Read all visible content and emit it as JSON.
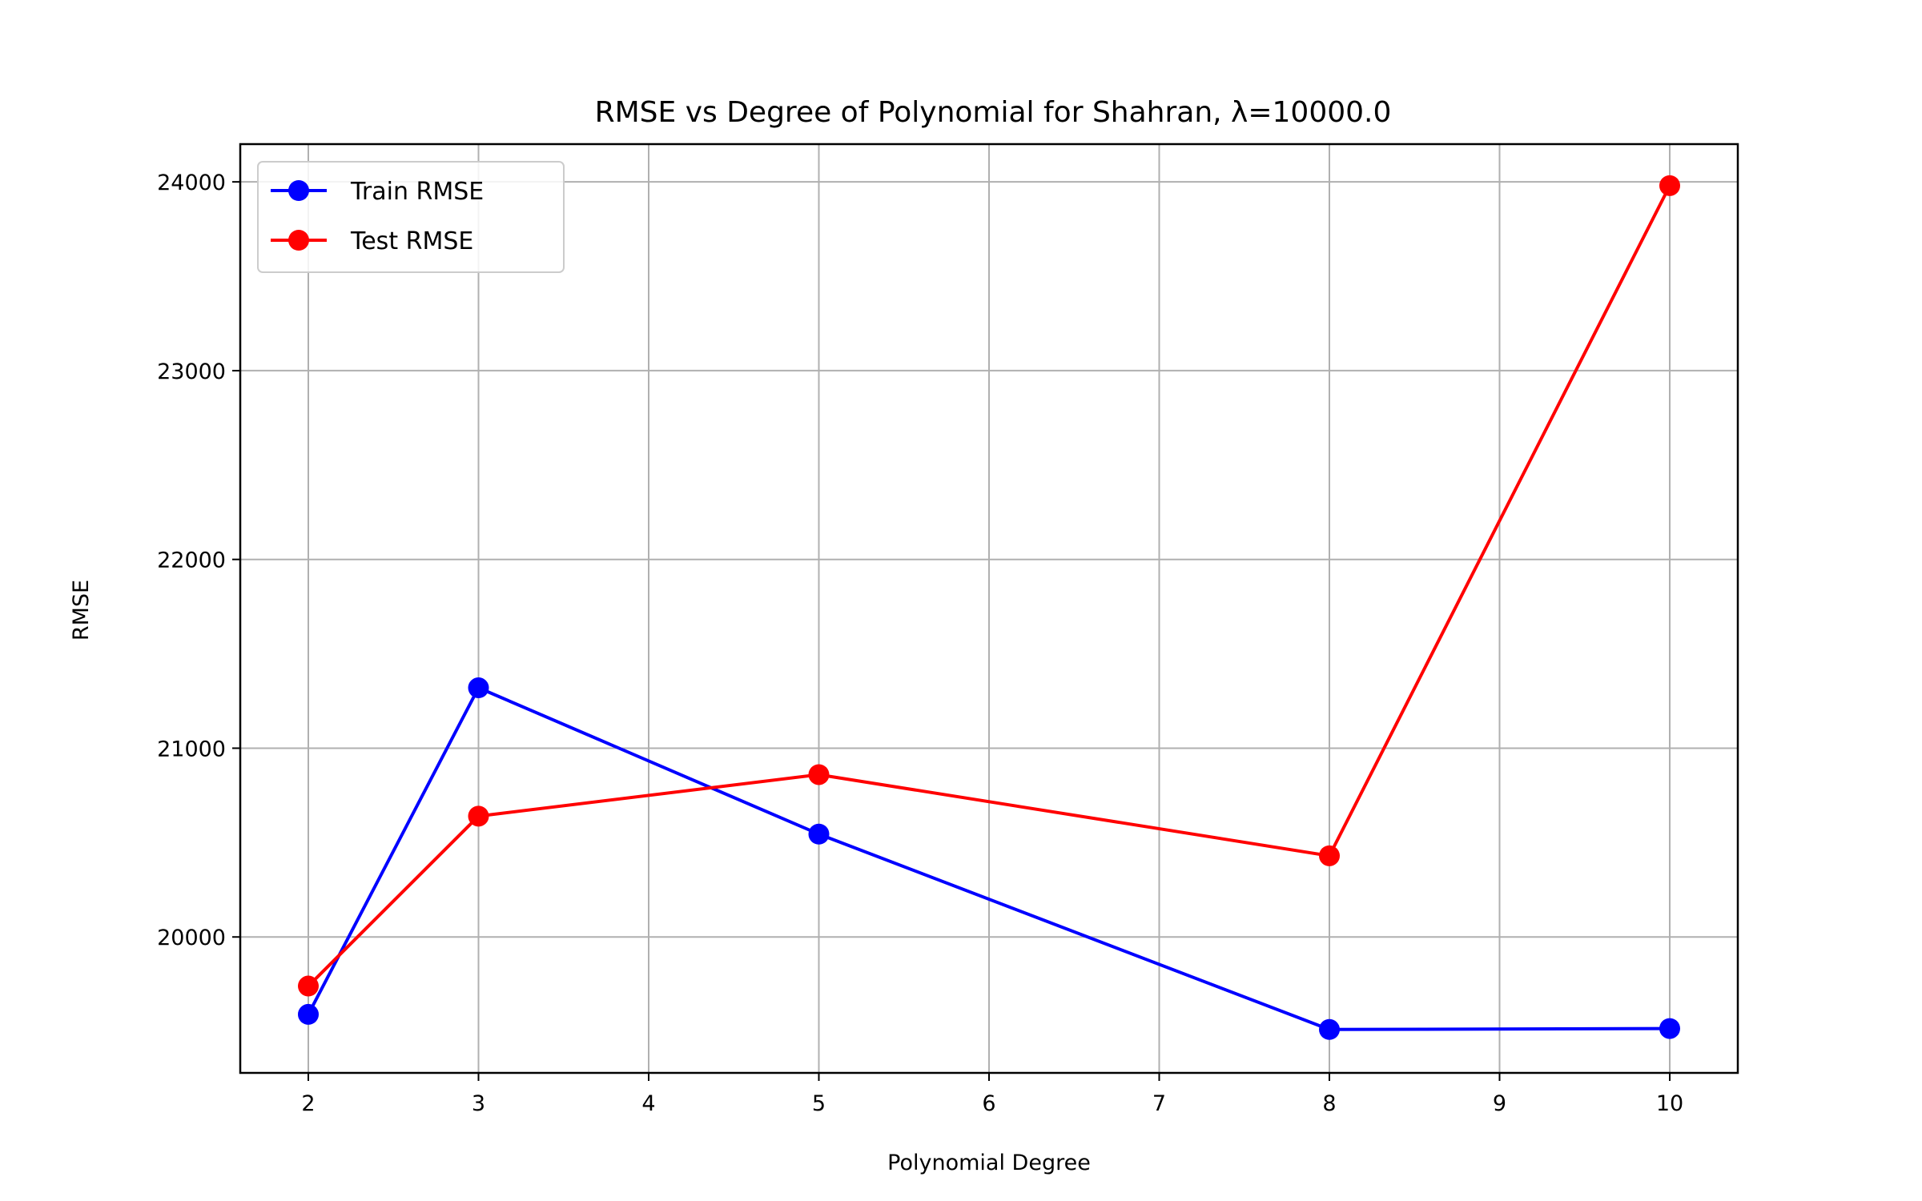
{
  "chart_data": {
    "type": "line",
    "title": "RMSE vs Degree of Polynomial for Shahran, λ=10000.0",
    "xlabel": "Polynomial Degree",
    "ylabel": "RMSE",
    "xlim": [
      1.6,
      10.4
    ],
    "ylim": [
      19280,
      24200
    ],
    "xticks": [
      2,
      3,
      4,
      5,
      6,
      7,
      8,
      9,
      10
    ],
    "yticks": [
      20000,
      21000,
      22000,
      23000,
      24000
    ],
    "grid": true,
    "legend_position": "top-left",
    "series": [
      {
        "name": "Train RMSE",
        "color": "#0000ff",
        "marker": "circle",
        "x": [
          2,
          3,
          5,
          8,
          10
        ],
        "y": [
          19590,
          21320,
          20545,
          19510,
          19515
        ]
      },
      {
        "name": "Test RMSE",
        "color": "#ff0000",
        "marker": "circle",
        "x": [
          2,
          3,
          5,
          8,
          10
        ],
        "y": [
          19740,
          20640,
          20860,
          20430,
          23980
        ]
      }
    ]
  }
}
